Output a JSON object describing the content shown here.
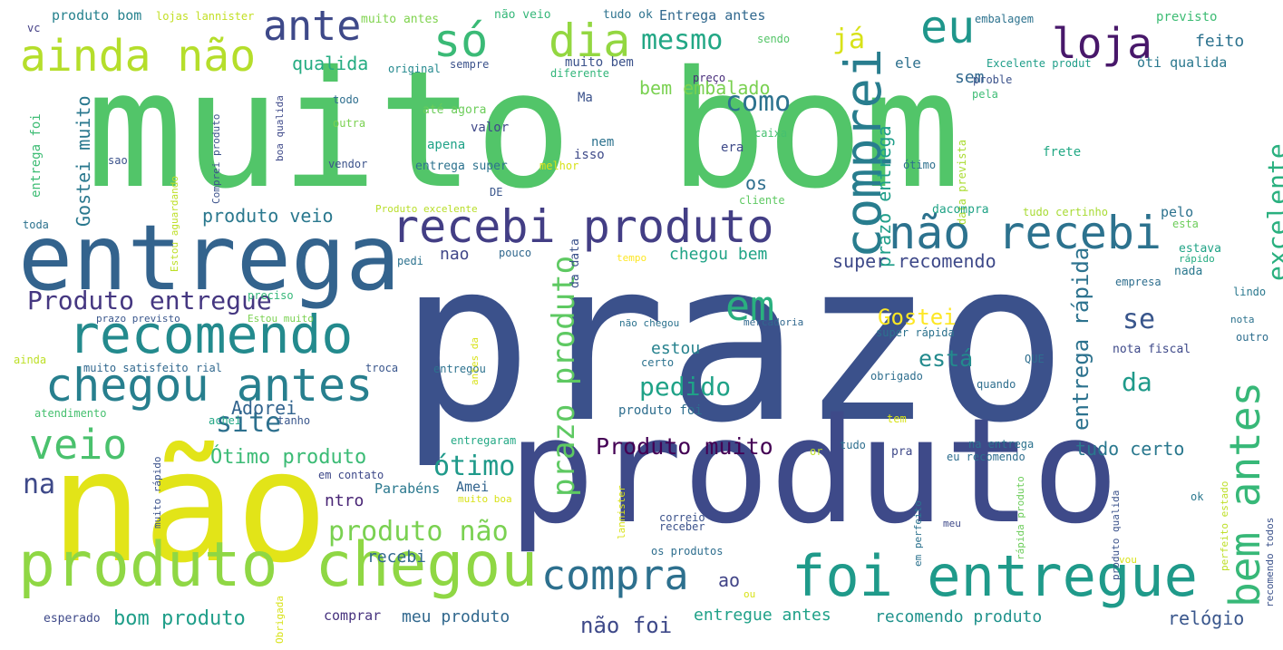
{
  "background_color": "#ffffff",
  "colormap": "viridis",
  "words": [
    {
      "id": "muito-bom",
      "text": "muito bom",
      "color": "#52c569"
    },
    {
      "id": "prazo",
      "text": "prazo",
      "color": "#3b518b"
    },
    {
      "id": "produto-big",
      "text": "produto",
      "color": "#3e4a89"
    },
    {
      "id": "nao-big",
      "text": "não",
      "color": "#e2e418"
    },
    {
      "id": "entrega",
      "text": "entrega",
      "color": "#33638d"
    },
    {
      "id": "produto-chegou",
      "text": "produto chegou",
      "color": "#8fd744"
    },
    {
      "id": "recomendo",
      "text": "recomendo",
      "color": "#238a8d"
    },
    {
      "id": "chegou-antes",
      "text": "chegou antes",
      "color": "#277f8e"
    },
    {
      "id": "foi-entregue",
      "text": "foi entregue",
      "color": "#1f9a8a"
    },
    {
      "id": "recebi-produto",
      "text": "recebi produto",
      "color": "#433e85"
    },
    {
      "id": "nao-recebi",
      "text": "não recebi",
      "color": "#2c728e"
    },
    {
      "id": "comprei",
      "text": "comprei",
      "color": "#287d8e"
    },
    {
      "id": "ainda-nao",
      "text": "ainda não",
      "color": "#b5de2b"
    },
    {
      "id": "so",
      "text": "só",
      "color": "#3aba76"
    },
    {
      "id": "dia",
      "text": "dia",
      "color": "#93d741"
    },
    {
      "id": "ante",
      "text": "ante",
      "color": "#3e4989"
    },
    {
      "id": "eu",
      "text": "eu",
      "color": "#1f968b"
    },
    {
      "id": "loja",
      "text": "loja",
      "color": "#48186a"
    },
    {
      "id": "veio",
      "text": "veio",
      "color": "#4ac16d"
    },
    {
      "id": "em",
      "text": "em",
      "color": "#2ab07f"
    },
    {
      "id": "compra",
      "text": "compra",
      "color": "#2d708e"
    },
    {
      "id": "bem-antes",
      "text": "bem antes",
      "color": "#37b878"
    },
    {
      "id": "ja",
      "text": "já",
      "color": "#d8e219"
    },
    {
      "id": "mesmo",
      "text": "mesmo",
      "color": "#22a785"
    },
    {
      "id": "qualida",
      "text": "qualida",
      "color": "#25ac82"
    },
    {
      "id": "bem-embalado",
      "text": "bem embalado",
      "color": "#7ad151"
    },
    {
      "id": "como",
      "text": "como",
      "color": "#2c728e"
    },
    {
      "id": "os",
      "text": "os",
      "color": "#2e6e8e"
    },
    {
      "id": "produto-veio",
      "text": "produto veio",
      "color": "#2a788e"
    },
    {
      "id": "produto-entregue",
      "text": "Produto entregue",
      "color": "#453781"
    },
    {
      "id": "gostei-muito",
      "text": "Gostei muito",
      "color": "#2a788e"
    },
    {
      "id": "excelente",
      "text": "excelente",
      "color": "#2ab07f"
    },
    {
      "id": "prazo-entrega",
      "text": "prazo entrega",
      "color": "#1f9e89"
    },
    {
      "id": "super-recomendo",
      "text": "super recomendo",
      "color": "#3e4989"
    },
    {
      "id": "chegou-bem",
      "text": "chegou bem",
      "color": "#20a386"
    },
    {
      "id": "nao-lower",
      "text": "nao",
      "color": "#404688"
    },
    {
      "id": "prazo-produto",
      "text": "prazo produto",
      "color": "#5ec962"
    },
    {
      "id": "produto-muito",
      "text": "Produto muito",
      "color": "#440154"
    },
    {
      "id": "pedido",
      "text": "pedido",
      "color": "#1fa287"
    },
    {
      "id": "entrega-rapida",
      "text": "entrega rápida",
      "color": "#2c728e"
    },
    {
      "id": "se",
      "text": "se",
      "color": "#39568c"
    },
    {
      "id": "esta",
      "text": "está",
      "color": "#238a8d"
    },
    {
      "id": "da",
      "text": "da",
      "color": "#1f9a8a"
    },
    {
      "id": "gostei",
      "text": "Gostei",
      "color": "#fde725"
    },
    {
      "id": "site",
      "text": "site",
      "color": "#2d708e"
    },
    {
      "id": "otimo-produto",
      "text": "Ótimo produto",
      "color": "#3bbb75"
    },
    {
      "id": "otimo",
      "text": "ótimo",
      "color": "#1f9a8a"
    },
    {
      "id": "produto-nao",
      "text": "produto não",
      "color": "#7ad151"
    },
    {
      "id": "adorei",
      "text": "Adorei",
      "color": "#32648e"
    },
    {
      "id": "estou",
      "text": "estou",
      "color": "#26828e"
    },
    {
      "id": "na",
      "text": "na",
      "color": "#3e4989"
    },
    {
      "id": "recebi",
      "text": "recebi",
      "color": "#31688e"
    },
    {
      "id": "bom-produto",
      "text": "bom produto",
      "color": "#1f9e89"
    },
    {
      "id": "nao-foi",
      "text": "não foi",
      "color": "#3e4989"
    },
    {
      "id": "entregue-antes",
      "text": "entregue antes",
      "color": "#1fa188"
    },
    {
      "id": "recomendo-produto",
      "text": "recomendo produto",
      "color": "#20928c"
    },
    {
      "id": "meu-produto",
      "text": "meu produto",
      "color": "#31688e"
    },
    {
      "id": "relogio",
      "text": "relógio",
      "color": "#39568c"
    },
    {
      "id": "tudo-certo",
      "text": "tudo certo",
      "color": "#2a788e"
    },
    {
      "id": "ao",
      "text": "ao",
      "color": "#414487"
    },
    {
      "id": "comprar",
      "text": "comprar",
      "color": "#46327e"
    },
    {
      "id": "esperado",
      "text": "esperado",
      "color": "#3e4989"
    },
    {
      "id": "parabens",
      "text": "Parabéns",
      "color": "#2a788e"
    },
    {
      "id": "amei",
      "text": "Amei",
      "color": "#32648e"
    },
    {
      "id": "ntro",
      "text": "ntro",
      "color": "#482475"
    },
    {
      "id": "feito",
      "text": "feito",
      "color": "#2c728e"
    },
    {
      "id": "sem",
      "text": "sem",
      "color": "#31688e"
    },
    {
      "id": "ele",
      "text": "ele",
      "color": "#2d708e"
    },
    {
      "id": "produto-bom",
      "text": "produto bom",
      "color": "#26828e"
    },
    {
      "id": "lojas-lannister",
      "text": "lojas lannister",
      "color": "#c2df23"
    },
    {
      "id": "muito-antes",
      "text": "muito antes",
      "color": "#7fd34e"
    },
    {
      "id": "nao-veio",
      "text": "não veio",
      "color": "#35b779"
    },
    {
      "id": "tudo-ok",
      "text": "tudo ok",
      "color": "#2c728e"
    },
    {
      "id": "entrega-antes",
      "text": "Entrega antes",
      "color": "#31688e"
    },
    {
      "id": "embalagem",
      "text": "embalagem",
      "color": "#2c728e"
    },
    {
      "id": "previsto",
      "text": "previsto",
      "color": "#3dbc74"
    },
    {
      "id": "vc",
      "text": "vc",
      "color": "#433e85"
    },
    {
      "id": "sempre",
      "text": "sempre",
      "color": "#3b528b"
    },
    {
      "id": "muito-bem",
      "text": "muito bem",
      "color": "#3b528b"
    },
    {
      "id": "original",
      "text": "original",
      "color": "#23898e"
    },
    {
      "id": "diferente",
      "text": "diferente",
      "color": "#32b67a"
    },
    {
      "id": "excelente-produt",
      "text": "Excelente produt",
      "color": "#1f9e89"
    },
    {
      "id": "oti-qualida",
      "text": "óti qualida",
      "color": "#2a788e"
    },
    {
      "id": "sendo",
      "text": "sendo",
      "color": "#54c568"
    },
    {
      "id": "preco",
      "text": "preço",
      "color": "#472c7a"
    },
    {
      "id": "proble",
      "text": "proble",
      "color": "#3b528b"
    },
    {
      "id": "pela",
      "text": "pela",
      "color": "#3dbc74"
    },
    {
      "id": "ma",
      "text": "Ma",
      "color": "#3b528b"
    },
    {
      "id": "todo",
      "text": "todo",
      "color": "#2e6e8e"
    },
    {
      "id": "outra",
      "text": "outra",
      "color": "#7ad151"
    },
    {
      "id": "ate-agora",
      "text": "até agora",
      "color": "#6ccd5a"
    },
    {
      "id": "valor",
      "text": "valor",
      "color": "#3f4889"
    },
    {
      "id": "nem",
      "text": "nem",
      "color": "#2c728e"
    },
    {
      "id": "isso",
      "text": "isso",
      "color": "#3e4a89"
    },
    {
      "id": "apena",
      "text": "apena",
      "color": "#1fa287"
    },
    {
      "id": "era",
      "text": "era",
      "color": "#3e4a89"
    },
    {
      "id": "caixa",
      "text": "caixa",
      "color": "#46c06f"
    },
    {
      "id": "frete",
      "text": "frete",
      "color": "#22a884"
    },
    {
      "id": "otimo-small",
      "text": "ótimo",
      "color": "#2d708e"
    },
    {
      "id": "sao",
      "text": "sao",
      "color": "#3b528b"
    },
    {
      "id": "vendor",
      "text": "vendor",
      "color": "#3b528b"
    },
    {
      "id": "entrega-super",
      "text": "entrega super",
      "color": "#2c728e"
    },
    {
      "id": "melhor",
      "text": "melhor",
      "color": "#d8e219"
    },
    {
      "id": "de",
      "text": "DE",
      "color": "#39568c"
    },
    {
      "id": "cliente",
      "text": "cliente",
      "color": "#5ec962"
    },
    {
      "id": "data-prevista",
      "text": "data prevista",
      "color": "#aadc32"
    },
    {
      "id": "dacompra",
      "text": "dacompra",
      "color": "#20a386"
    },
    {
      "id": "tudo-certinho",
      "text": "tudo certinho",
      "color": "#a8db34"
    },
    {
      "id": "pelo",
      "text": "pelo",
      "color": "#2c728e"
    },
    {
      "id": "esta-small",
      "text": "esta",
      "color": "#6ccd5a"
    },
    {
      "id": "toda",
      "text": "toda",
      "color": "#2c728e"
    },
    {
      "id": "produto-excelente",
      "text": "Produto excelente",
      "color": "#b8de29"
    },
    {
      "id": "pedi",
      "text": "pedi",
      "color": "#2c728e"
    },
    {
      "id": "pouco",
      "text": "pouco",
      "color": "#31688e"
    },
    {
      "id": "tempo",
      "text": "tempo",
      "color": "#fde725"
    },
    {
      "id": "estava",
      "text": "estava",
      "color": "#20a386"
    },
    {
      "id": "rapido",
      "text": "rápido",
      "color": "#25ac82"
    },
    {
      "id": "nada",
      "text": "nada",
      "color": "#2a788e"
    },
    {
      "id": "empresa",
      "text": "empresa",
      "color": "#2e6e8e"
    },
    {
      "id": "lindo",
      "text": "lindo",
      "color": "#2a788e"
    },
    {
      "id": "preciso",
      "text": "preciso",
      "color": "#35b779"
    },
    {
      "id": "prazo-previsto",
      "text": "prazo previsto",
      "color": "#39568c"
    },
    {
      "id": "estou-muito",
      "text": "Estou muito",
      "color": "#7ad151"
    },
    {
      "id": "nao-chegou",
      "text": "não chegou",
      "color": "#2c728e"
    },
    {
      "id": "mercadoria",
      "text": "mercadoria",
      "color": "#31688e"
    },
    {
      "id": "nota",
      "text": "nota",
      "color": "#2c728e"
    },
    {
      "id": "ainda-small",
      "text": "ainda",
      "color": "#bddf26"
    },
    {
      "id": "muito-satisfeito",
      "text": "muito satisfeito",
      "color": "#31688e"
    },
    {
      "id": "rial",
      "text": "rial",
      "color": "#31688e"
    },
    {
      "id": "super-rapida",
      "text": "super rápida",
      "color": "#2c728e"
    },
    {
      "id": "nota-fiscal",
      "text": "nota fiscal",
      "color": "#3e4989"
    },
    {
      "id": "outro",
      "text": "outro",
      "color": "#2e6e8e"
    },
    {
      "id": "troca",
      "text": "troca",
      "color": "#39568c"
    },
    {
      "id": "entregou",
      "text": "entregou",
      "color": "#2c728e"
    },
    {
      "id": "certo",
      "text": "certo",
      "color": "#2c728e"
    },
    {
      "id": "que",
      "text": "QUE",
      "color": "#2e6e8e"
    },
    {
      "id": "obrigado",
      "text": "obrigado",
      "color": "#2e6e8e"
    },
    {
      "id": "quando",
      "text": "quando",
      "color": "#2e6e8e"
    },
    {
      "id": "atendimento",
      "text": "atendimento",
      "color": "#46c06f"
    },
    {
      "id": "achei",
      "text": "achei",
      "color": "#22a785"
    },
    {
      "id": "tanho",
      "text": "tanho",
      "color": "#39568c"
    },
    {
      "id": "produto-foi",
      "text": "produto foi",
      "color": "#2e6e8e"
    },
    {
      "id": "tem",
      "text": "tem",
      "color": "#d8e219"
    },
    {
      "id": "entregaram",
      "text": "entregaram",
      "color": "#22a884"
    },
    {
      "id": "or",
      "text": "or",
      "color": "#bddf26"
    },
    {
      "id": "tudo",
      "text": "tudo",
      "color": "#2e6e8e"
    },
    {
      "id": "pra",
      "text": "pra",
      "color": "#3e4989"
    },
    {
      "id": "na-entrega",
      "text": "na entrega",
      "color": "#2c728e"
    },
    {
      "id": "eu-recomendo",
      "text": "eu recomendo",
      "color": "#2e6e8e"
    },
    {
      "id": "em-contato",
      "text": "em contato",
      "color": "#3e4989"
    },
    {
      "id": "muito-boa",
      "text": "muito boa",
      "color": "#d8e219"
    },
    {
      "id": "correio",
      "text": "correio",
      "color": "#3b528b"
    },
    {
      "id": "receber",
      "text": "receber",
      "color": "#3b528b"
    },
    {
      "id": "os-produtos",
      "text": "os produtos",
      "color": "#2e6e8e"
    },
    {
      "id": "meu",
      "text": "meu",
      "color": "#3e4989"
    },
    {
      "id": "ok",
      "text": "ok",
      "color": "#2a788e"
    },
    {
      "id": "vou",
      "text": "vou",
      "color": "#d8e219"
    },
    {
      "id": "ou",
      "text": "ou",
      "color": "#d8e219"
    },
    {
      "id": "boa-qualida",
      "text": "boa qualida",
      "color": "#3e4989"
    },
    {
      "id": "comprei-produto",
      "text": "Comprei produto",
      "color": "#3b528b"
    },
    {
      "id": "entrega-foi",
      "text": "entrega foi",
      "color": "#3dbc74"
    },
    {
      "id": "estou-aguardando",
      "text": "Estou aguardando",
      "color": "#bddf26"
    },
    {
      "id": "antes-da",
      "text": "antes da",
      "color": "#d8e219"
    },
    {
      "id": "da-data",
      "text": "da data",
      "color": "#3b528b"
    },
    {
      "id": "muito-rapido",
      "text": "muito rápido",
      "color": "#3b528b"
    },
    {
      "id": "lannister",
      "text": "lannister",
      "color": "#d8e219"
    },
    {
      "id": "em-perfeito",
      "text": "em perfeito",
      "color": "#2c728e"
    },
    {
      "id": "rapida-produto",
      "text": "rápida produto",
      "color": "#6ccd5a"
    },
    {
      "id": "produto-qualida",
      "text": "produto qualida",
      "color": "#3b528b"
    },
    {
      "id": "perfeito-estado",
      "text": "perfeito estado",
      "color": "#bddf26"
    },
    {
      "id": "recomendo-todos",
      "text": "recomendo todos",
      "color": "#3b528b"
    },
    {
      "id": "obrigada",
      "text": "Obrigada",
      "color": "#d8e219"
    }
  ]
}
